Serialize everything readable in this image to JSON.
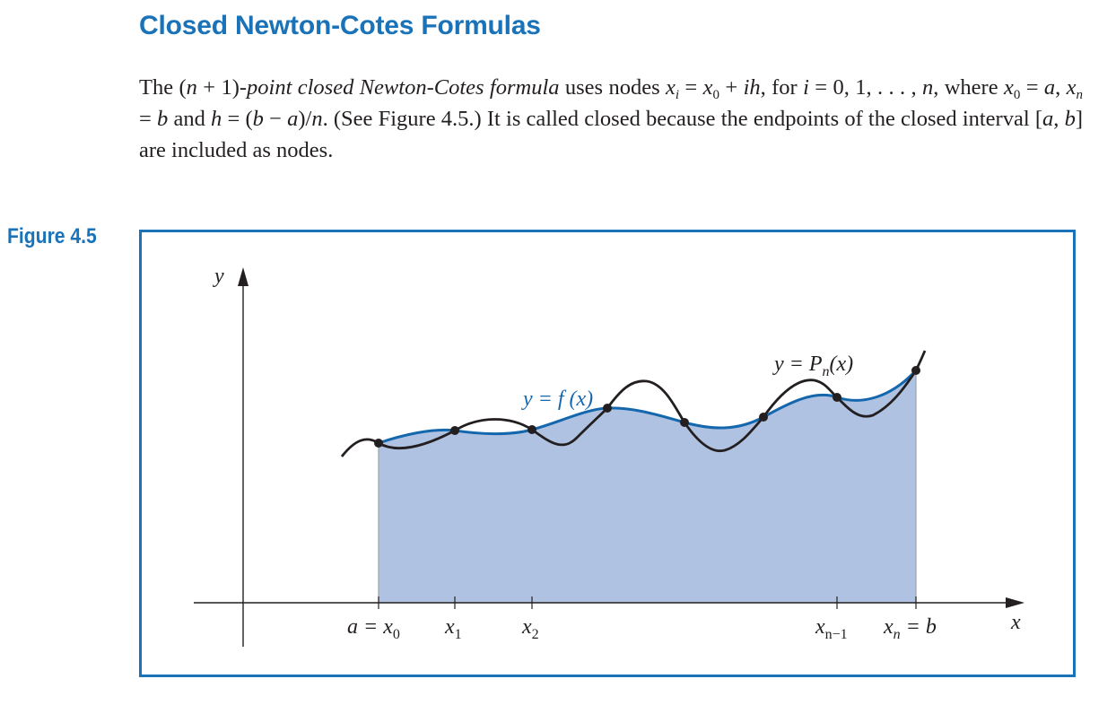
{
  "section": {
    "title": "Closed Newton-Cotes Formulas"
  },
  "paragraph": {
    "p1": "The (",
    "n1": "n",
    "p2": " + 1)",
    "term": "-point closed Newton-Cotes formula",
    "p3": " uses nodes ",
    "x1": "x",
    "i1": "i",
    "p4": " = ",
    "x2": "x",
    "z1": "0",
    "p5": " + ",
    "ih": "ih",
    "p6": ", for ",
    "i2": "i",
    "p7": " = 0, 1, . . . , ",
    "n2": "n",
    "p8": ", where ",
    "x3": "x",
    "z2": "0",
    "p9": " = ",
    "a1": "a",
    "p10": ", ",
    "x4": "x",
    "n3": "n",
    "p11": " = ",
    "b1": "b",
    "p12": " and ",
    "h1": "h",
    "p13": " = (",
    "b2": "b",
    "p14": " − ",
    "a2": "a",
    "p15": ")/",
    "n4": "n",
    "p16": ". (See Figure 4.5.) It is called closed because the endpoints of the closed interval [",
    "a3": "a",
    "p17": ", ",
    "b3": "b",
    "p18": "] are included as nodes."
  },
  "figure": {
    "label": "Figure 4.5",
    "y_axis_label": "y",
    "x_axis_label": "x",
    "f_label_left": "y = f (x)",
    "p_label_main": "y = P",
    "p_label_sub": "n",
    "p_label_tail": "(x)",
    "ticks": [
      {
        "main": "a = x",
        "sub": "0",
        "tail": ""
      },
      {
        "main": "x",
        "sub": "1",
        "tail": ""
      },
      {
        "main": "x",
        "sub": "2",
        "tail": ""
      },
      {
        "main": "x",
        "sub": "n−1",
        "tail": ""
      },
      {
        "main": "x",
        "sub": "n",
        "tail": " = b"
      }
    ],
    "colors": {
      "accent": "#1a73b8",
      "fill": "#b0c2e1",
      "f_curve": "#1467ad",
      "p_curve": "#231f20"
    }
  }
}
